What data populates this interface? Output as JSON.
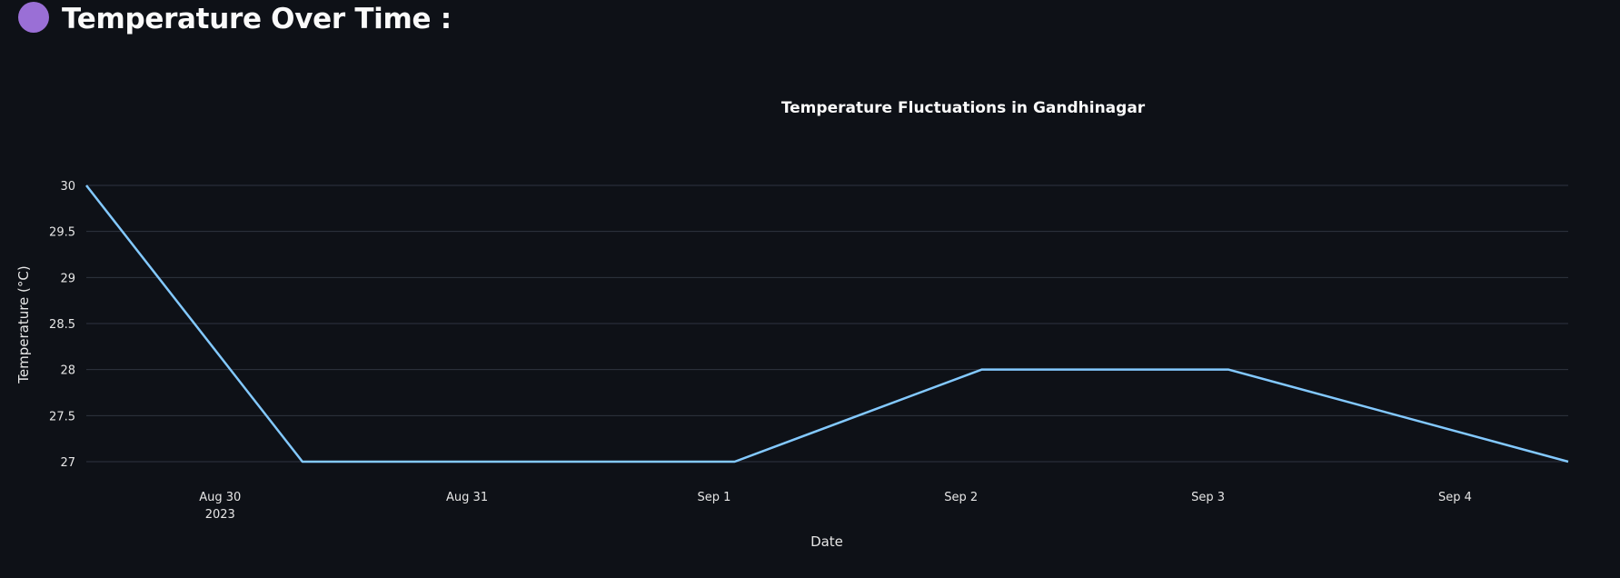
{
  "page": {
    "title": "Temperature Over Time :",
    "icon": "purple-circle-icon",
    "accent_color": "#9a6fd6"
  },
  "chart_data": {
    "type": "line",
    "title": "Temperature Fluctuations in Gandhinagar",
    "xlabel": "Date",
    "ylabel": "Temperature (°C)",
    "x": [
      "2023-08-29 11:00",
      "2023-08-30 08:00",
      "2023-09-01 02:00",
      "2023-09-02 02:00",
      "2023-09-03 02:00",
      "2023-09-04 11:00"
    ],
    "series": [
      {
        "values": [
          30,
          27,
          27,
          28,
          28,
          27
        ],
        "color": "#83c9ff"
      }
    ],
    "ylim": [
      27,
      30
    ],
    "y_ticks": [
      {
        "value": 27,
        "label": "27"
      },
      {
        "value": 27.5,
        "label": "27.5"
      },
      {
        "value": 28,
        "label": "28"
      },
      {
        "value": 28.5,
        "label": "28.5"
      },
      {
        "value": 29,
        "label": "29"
      },
      {
        "value": 29.5,
        "label": "29.5"
      },
      {
        "value": 30,
        "label": "30"
      }
    ],
    "x_ticks": [
      {
        "date": "2023-08-30 00:00",
        "label": "Aug 30",
        "sublabel": "2023"
      },
      {
        "date": "2023-08-31 00:00",
        "label": "Aug 31",
        "sublabel": ""
      },
      {
        "date": "2023-09-01 00:00",
        "label": "Sep 1",
        "sublabel": ""
      },
      {
        "date": "2023-09-02 00:00",
        "label": "Sep 2",
        "sublabel": ""
      },
      {
        "date": "2023-09-03 00:00",
        "label": "Sep 3",
        "sublabel": ""
      },
      {
        "date": "2023-09-04 00:00",
        "label": "Sep 4",
        "sublabel": ""
      }
    ],
    "grid": true,
    "background": "#0e1117"
  }
}
